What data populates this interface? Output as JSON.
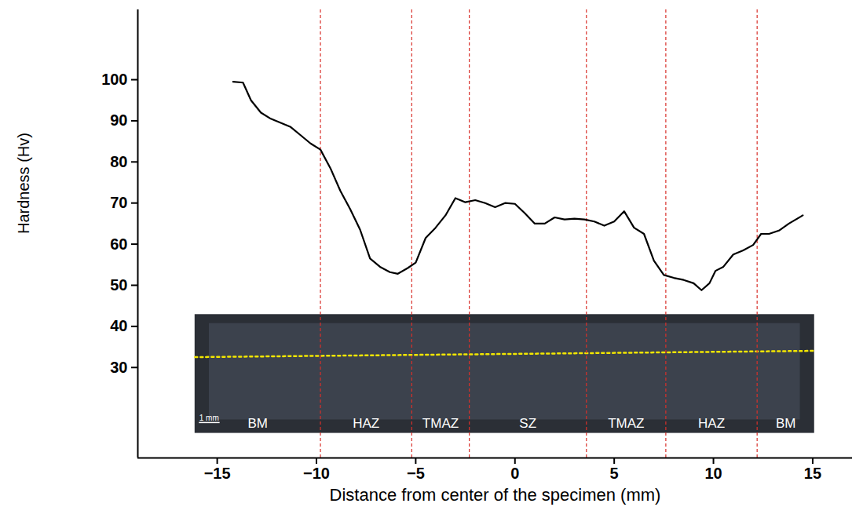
{
  "chart_data": {
    "type": "line",
    "x_label": "Distance from center of the specimen (mm)",
    "y_label": "Hardness (Hv)",
    "color": "#000000",
    "x": [
      -14.2,
      -13.7,
      -13.3,
      -12.8,
      -12.3,
      -11.8,
      -11.3,
      -10.8,
      -10.3,
      -9.8,
      -9.3,
      -8.8,
      -8.3,
      -7.8,
      -7.3,
      -6.8,
      -6.3,
      -5.9,
      -5.4,
      -5.0,
      -4.5,
      -4.0,
      -3.5,
      -3.0,
      -2.5,
      -2.0,
      -1.5,
      -1.0,
      -0.5,
      0.0,
      0.5,
      1.0,
      1.5,
      2.0,
      2.5,
      3.0,
      3.5,
      4.0,
      4.5,
      5.0,
      5.5,
      6.0,
      6.5,
      7.0,
      7.5,
      8.0,
      8.5,
      9.0,
      9.4,
      9.8,
      10.1,
      10.5,
      11.0,
      11.5,
      12.0,
      12.4,
      12.8,
      13.3,
      13.8,
      14.5
    ],
    "values": [
      99.5,
      99.3,
      95,
      92,
      90.5,
      89.5,
      88.5,
      86.5,
      84.5,
      83,
      78.5,
      73,
      68.5,
      63.5,
      56.5,
      54.5,
      53.2,
      52.8,
      54.2,
      55.5,
      61.5,
      64,
      67,
      71.2,
      70.2,
      70.7,
      70,
      69,
      70,
      69.8,
      67.5,
      65,
      65,
      66.5,
      66,
      66.2,
      66,
      65.5,
      64.5,
      65.5,
      68,
      64,
      62.5,
      56,
      52.5,
      51.8,
      51.3,
      50.5,
      48.8,
      50.5,
      53.5,
      54.5,
      57.5,
      58.5,
      59.8,
      62.5,
      62.5,
      63.3,
      65,
      67
    ],
    "xlim": [
      -19,
      17
    ],
    "ylim": [
      8,
      117
    ],
    "xticks": [
      -15,
      -10,
      -5,
      0,
      5,
      10,
      15
    ],
    "yticks": [
      30,
      40,
      50,
      60,
      70,
      80,
      90,
      100
    ],
    "zone_boundaries": [
      -9.8,
      -5.2,
      -2.3,
      3.6,
      7.6,
      12.2
    ],
    "zone_labels": [
      "BM",
      "HAZ",
      "TMAZ",
      "SZ",
      "TMAZ",
      "HAZ",
      "BM"
    ],
    "scale_bar_label": "1 mm"
  }
}
